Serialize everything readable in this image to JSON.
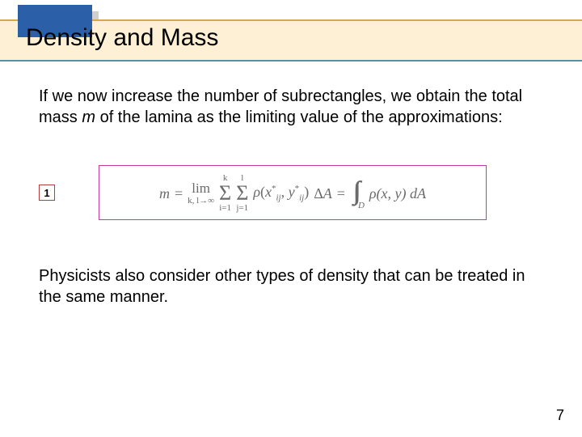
{
  "header": {
    "title": "Density and Mass",
    "band_bg": "#fdf0d5",
    "band_border_top": "#d4a84b",
    "band_border_bottom": "#5a8fa8",
    "block_color": "#2b5fa8"
  },
  "paragraph1": {
    "pre": "If we now increase the number of subrectangles, we obtain the total mass ",
    "var": "m",
    "post": " of the lamina as the limiting value of the approximations:"
  },
  "equation": {
    "label": "1",
    "label_border": "#b04040",
    "box_border": "#c43aa0",
    "text_color": "#6a6a6a",
    "lhs_var": "m",
    "eq_sign": "=",
    "lim": {
      "word": "lim",
      "sub": "k, l→∞"
    },
    "sum1": {
      "top": "k",
      "sub": "i=1"
    },
    "sum2": {
      "top": "l",
      "sub": "j=1"
    },
    "rho": "ρ",
    "args_open": "(",
    "arg_x": "x",
    "arg_x_sub": "ij",
    "star": "*",
    "comma": ", ",
    "arg_y": "y",
    "arg_y_sub": "ij",
    "args_close": ")",
    "delta": "Δ",
    "deltaA": "A",
    "eq2": "=",
    "region": "D",
    "int_args": "ρ(x, y) dA"
  },
  "paragraph2": "Physicists also consider other types of density that can be treated in the same manner.",
  "page_number": "7"
}
